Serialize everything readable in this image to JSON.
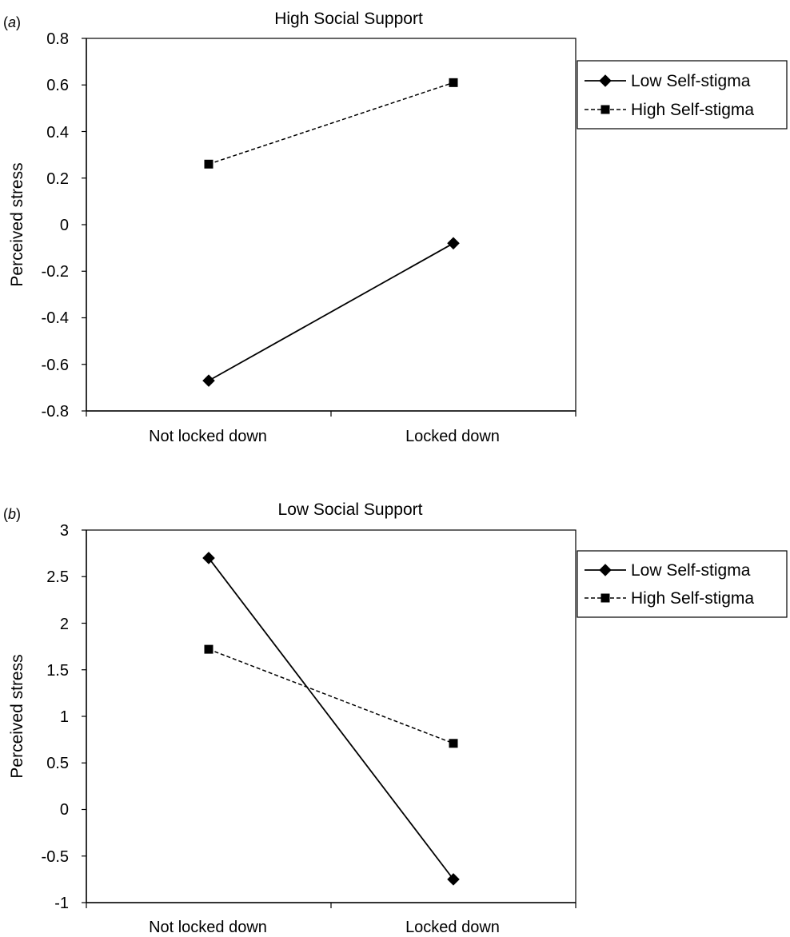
{
  "figure": {
    "panels": [
      {
        "letter_open": "(",
        "letter": "a",
        "letter_close": ")",
        "title": "High Social Support",
        "ylabel": "Perceived stress",
        "ytick_labels": [
          "0.8",
          "0.6",
          "0.4",
          "0.2",
          "0",
          "-0.2",
          "-0.4",
          "-0.6",
          "-0.8"
        ],
        "xtick_labels": [
          "Not locked down",
          "Locked down"
        ],
        "legend": [
          "Low Self-stigma",
          "High Self-stigma"
        ]
      },
      {
        "letter_open": "(",
        "letter": "b",
        "letter_close": ")",
        "title": "Low Social Support",
        "ylabel": "Perceived stress",
        "ytick_labels": [
          "3",
          "2.5",
          "2",
          "1.5",
          "1",
          "0.5",
          "0",
          "-0.5",
          "-1"
        ],
        "xtick_labels": [
          "Not locked down",
          "Locked down"
        ],
        "legend": [
          "Low Self-stigma",
          "High Self-stigma"
        ]
      }
    ]
  },
  "chart_data": [
    {
      "type": "line",
      "title": "High Social Support",
      "xlabel": "",
      "ylabel": "Perceived stress",
      "categories": [
        "Not locked down",
        "Locked down"
      ],
      "ylim": [
        -0.8,
        0.8
      ],
      "yticks": [
        0.8,
        0.6,
        0.4,
        0.2,
        0,
        -0.2,
        -0.4,
        -0.6,
        -0.8
      ],
      "grid": false,
      "legend_position": "right",
      "series": [
        {
          "name": "Low Self-stigma",
          "values": [
            -0.67,
            -0.08
          ],
          "marker": "diamond",
          "line": "solid",
          "color": "#000000"
        },
        {
          "name": "High Self-stigma",
          "values": [
            0.26,
            0.61
          ],
          "marker": "square",
          "line": "dashed",
          "color": "#000000"
        }
      ]
    },
    {
      "type": "line",
      "title": "Low Social Support",
      "xlabel": "",
      "ylabel": "Perceived stress",
      "categories": [
        "Not locked down",
        "Locked down"
      ],
      "ylim": [
        -1,
        3
      ],
      "yticks": [
        3,
        2.5,
        2,
        1.5,
        1,
        0.5,
        0,
        -0.5,
        -1
      ],
      "grid": false,
      "legend_position": "right",
      "series": [
        {
          "name": "Low Self-stigma",
          "values": [
            2.7,
            -0.75
          ],
          "marker": "diamond",
          "line": "solid",
          "color": "#000000"
        },
        {
          "name": "High Self-stigma",
          "values": [
            1.72,
            0.71
          ],
          "marker": "square",
          "line": "dashed",
          "color": "#000000"
        }
      ]
    }
  ]
}
